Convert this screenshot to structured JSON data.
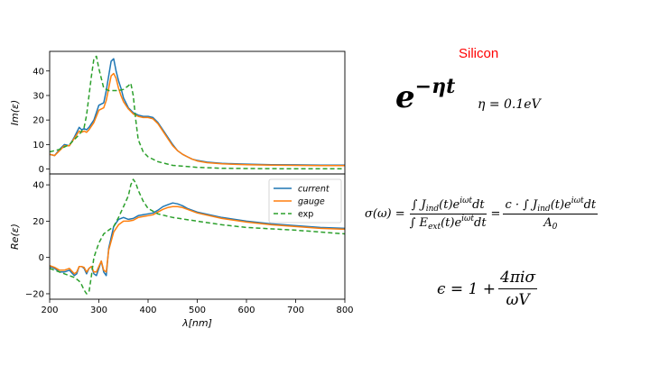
{
  "slide": {
    "title": "Silicon",
    "eq_exp_base": "e",
    "eq_exp_power": "−ηt",
    "eq_eta": "η = 0.1eV",
    "eq_sigma_lhs": "σ(ω) =",
    "eq_sigma_f1_num": "∫ J",
    "eq_sigma_f1_num_sub": "ind",
    "eq_sigma_f1_num_mid": "(t)e",
    "eq_sigma_f1_num_sup": "iωt",
    "eq_sigma_f1_num_end": "dt",
    "eq_sigma_f1_den": "∫ E",
    "eq_sigma_f1_den_sub": "ext",
    "eq_sigma_f1_den_mid": "(t)e",
    "eq_sigma_f1_den_sup": "iωt",
    "eq_sigma_f1_den_end": "dt",
    "eq_sigma_equals": "=",
    "eq_sigma_f2_num": "c · ∫ J",
    "eq_sigma_f2_num_sub": "ind",
    "eq_sigma_f2_num_mid": "(t)e",
    "eq_sigma_f2_num_sup": "iωt",
    "eq_sigma_f2_num_end": "dt",
    "eq_sigma_f2_den": "A",
    "eq_sigma_f2_den_sub": "0",
    "eq_eps_lhs": "ϵ = 1 +",
    "eq_eps_num": "4πiσ",
    "eq_eps_den": "ωV"
  },
  "chart_data": [
    {
      "type": "line",
      "panel": "top",
      "ylabel": "Im(ε)",
      "xlim": [
        200,
        800
      ],
      "ylim": [
        -2,
        48
      ],
      "yticks": [
        0,
        10,
        20,
        30,
        40
      ],
      "series": [
        {
          "name": "current",
          "color": "#1f77b4",
          "style": "solid",
          "x": [
            200,
            210,
            220,
            230,
            240,
            250,
            260,
            265,
            270,
            275,
            280,
            290,
            300,
            310,
            315,
            320,
            325,
            330,
            335,
            340,
            345,
            350,
            360,
            370,
            380,
            390,
            400,
            410,
            420,
            430,
            440,
            450,
            460,
            470,
            480,
            490,
            500,
            520,
            550,
            600,
            650,
            700,
            750,
            800
          ],
          "y": [
            6,
            5.5,
            8,
            10,
            9.5,
            13,
            17,
            16,
            16.5,
            16,
            17,
            20,
            26,
            27,
            32,
            38,
            44,
            45,
            40,
            36,
            33,
            29,
            25,
            23,
            22,
            21.5,
            21.5,
            21,
            19,
            16,
            13,
            10,
            7.5,
            6,
            5,
            4,
            3.5,
            2.8,
            2.3,
            2,
            1.8,
            1.7,
            1.6,
            1.6
          ]
        },
        {
          "name": "gauge",
          "color": "#ff7f0e",
          "style": "solid",
          "x": [
            200,
            210,
            220,
            230,
            240,
            250,
            260,
            265,
            270,
            275,
            280,
            290,
            300,
            310,
            315,
            320,
            325,
            330,
            335,
            340,
            345,
            350,
            360,
            370,
            380,
            390,
            400,
            410,
            420,
            430,
            440,
            450,
            460,
            470,
            480,
            490,
            500,
            520,
            550,
            600,
            650,
            700,
            750,
            800
          ],
          "y": [
            6,
            5.5,
            7.5,
            9.5,
            9.5,
            12.5,
            15.5,
            15,
            15.5,
            15,
            16,
            19,
            24,
            25,
            28,
            33,
            38,
            39,
            37,
            33,
            30,
            27.5,
            24.5,
            22.5,
            21.5,
            21,
            21,
            20.5,
            18.5,
            15.5,
            12.5,
            9.5,
            7.5,
            6,
            5,
            4,
            3.3,
            2.6,
            2.1,
            1.8,
            1.6,
            1.5,
            1.4,
            1.4
          ]
        },
        {
          "name": "exp",
          "color": "#2ca02c",
          "style": "dashed",
          "x": [
            200,
            220,
            240,
            250,
            260,
            270,
            275,
            280,
            285,
            290,
            295,
            300,
            305,
            310,
            320,
            330,
            340,
            350,
            360,
            365,
            370,
            375,
            380,
            390,
            400,
            420,
            450,
            500,
            550,
            600,
            700,
            800
          ],
          "y": [
            7,
            8,
            10,
            12,
            14,
            17,
            22,
            30,
            38,
            45,
            46,
            41,
            37,
            33,
            32,
            32,
            32,
            32.5,
            34,
            35,
            30,
            20,
            12,
            7,
            5,
            3,
            1.5,
            0.7,
            0.3,
            0.2,
            0.1,
            0.1
          ]
        }
      ]
    },
    {
      "type": "line",
      "panel": "bottom",
      "xlabel": "λ[nm]",
      "ylabel": "Re(ε)",
      "xlim": [
        200,
        800
      ],
      "ylim": [
        -23,
        46
      ],
      "yticks": [
        -20,
        0,
        20,
        40
      ],
      "xticks": [
        200,
        300,
        400,
        500,
        600,
        700,
        800
      ],
      "legend": "upper-right",
      "series": [
        {
          "name": "current",
          "color": "#1f77b4",
          "style": "solid",
          "x": [
            200,
            210,
            220,
            230,
            240,
            250,
            255,
            260,
            265,
            270,
            275,
            280,
            285,
            290,
            295,
            300,
            305,
            310,
            315,
            320,
            330,
            340,
            350,
            360,
            370,
            380,
            390,
            400,
            410,
            420,
            430,
            440,
            450,
            460,
            470,
            480,
            500,
            550,
            600,
            650,
            700,
            750,
            800
          ],
          "y": [
            -5,
            -6,
            -8,
            -8,
            -7,
            -10,
            -9,
            -5,
            -5,
            -6,
            -9,
            -6,
            -5,
            -9,
            -10,
            -6,
            -2,
            -8,
            -10,
            5,
            17,
            21,
            22,
            21,
            21.5,
            23,
            23.5,
            24,
            24.5,
            26,
            28,
            29,
            30,
            29.5,
            28.5,
            27,
            25,
            22,
            20,
            18.5,
            17.5,
            16.5,
            16
          ]
        },
        {
          "name": "gauge",
          "color": "#ff7f0e",
          "style": "solid",
          "x": [
            200,
            210,
            220,
            230,
            240,
            250,
            255,
            260,
            265,
            270,
            275,
            280,
            285,
            290,
            295,
            300,
            305,
            310,
            315,
            320,
            330,
            340,
            350,
            360,
            370,
            380,
            390,
            400,
            410,
            420,
            430,
            440,
            450,
            460,
            470,
            480,
            500,
            550,
            600,
            650,
            700,
            750,
            800
          ],
          "y": [
            -4.5,
            -5.5,
            -7,
            -7,
            -6,
            -9,
            -8,
            -5,
            -5,
            -5.5,
            -8,
            -6,
            -5,
            -8,
            -8,
            -5,
            -2,
            -7,
            -8,
            4,
            14,
            18,
            20,
            20,
            20.5,
            22,
            22.5,
            23,
            23.5,
            25,
            26.5,
            27.5,
            28,
            28,
            27.5,
            26.5,
            24.5,
            21.5,
            19.5,
            18,
            17,
            16,
            15.5
          ]
        },
        {
          "name": "exp",
          "color": "#2ca02c",
          "style": "dashed",
          "x": [
            200,
            220,
            240,
            250,
            260,
            265,
            270,
            275,
            280,
            285,
            290,
            300,
            310,
            320,
            330,
            340,
            350,
            360,
            365,
            370,
            375,
            380,
            390,
            400,
            420,
            450,
            500,
            550,
            600,
            700,
            800
          ],
          "y": [
            -6,
            -8,
            -10,
            -11,
            -13,
            -15,
            -18,
            -20,
            -19,
            -10,
            0,
            8,
            13,
            15,
            17,
            22,
            28,
            34,
            40,
            43,
            41,
            37,
            31,
            27,
            24,
            22,
            20,
            18,
            16.5,
            15,
            13
          ]
        }
      ]
    }
  ]
}
